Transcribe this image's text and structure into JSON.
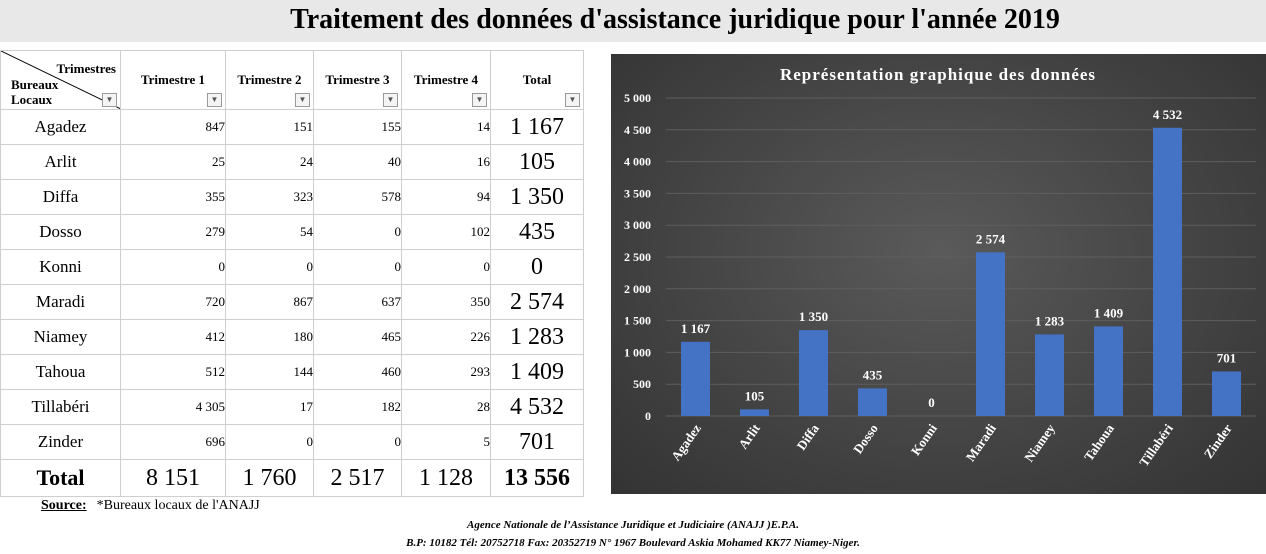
{
  "title": "Traitement des données d'assistance juridique pour l'année 2019",
  "table": {
    "corner_top": "Trimestres",
    "corner_bottom": "Bureaux Locaux",
    "columns": [
      "Trimestre 1",
      "Trimestre 2",
      "Trimestre 3",
      "Trimestre 4",
      "Total"
    ],
    "rows": [
      {
        "label": "Agadez",
        "values": [
          "847",
          "151",
          "155",
          "14"
        ],
        "total": "1 167"
      },
      {
        "label": "Arlit",
        "values": [
          "25",
          "24",
          "40",
          "16"
        ],
        "total": "105"
      },
      {
        "label": "Diffa",
        "values": [
          "355",
          "323",
          "578",
          "94"
        ],
        "total": "1 350"
      },
      {
        "label": "Dosso",
        "values": [
          "279",
          "54",
          "0",
          "102"
        ],
        "total": "435"
      },
      {
        "label": "Konni",
        "values": [
          "0",
          "0",
          "0",
          "0"
        ],
        "total": "0"
      },
      {
        "label": "Maradi",
        "values": [
          "720",
          "867",
          "637",
          "350"
        ],
        "total": "2 574"
      },
      {
        "label": "Niamey",
        "values": [
          "412",
          "180",
          "465",
          "226"
        ],
        "total": "1 283"
      },
      {
        "label": "Tahoua",
        "values": [
          "512",
          "144",
          "460",
          "293"
        ],
        "total": "1 409"
      },
      {
        "label": "Tillabéri",
        "values": [
          "4 305",
          "17",
          "182",
          "28"
        ],
        "total": "4 532"
      },
      {
        "label": "Zinder",
        "values": [
          "696",
          "0",
          "0",
          "5"
        ],
        "total": "701"
      }
    ],
    "total_row": {
      "label": "Total",
      "values": [
        "8 151",
        "1 760",
        "2 517",
        "1 128"
      ],
      "total": "13 556"
    }
  },
  "source": {
    "label": "Source:",
    "text": "*Bureaux locaux de l'ANAJJ"
  },
  "footer": {
    "line1": "Agence Nationale de l’Assistance Juridique et Judiciaire (ANAJJ )E.P.A.",
    "line2": "B.P: 10182 Tél: 20752718 Fax: 20352719 N° 1967 Boulevard Askia Mohamed KK77 Niamey-Niger."
  },
  "chart_data": {
    "type": "bar",
    "title": "Représentation graphique des données",
    "categories": [
      "Agadez",
      "Arlit",
      "Diffa",
      "Dosso",
      "Konni",
      "Maradi",
      "Niamey",
      "Tahoua",
      "Tillabéri",
      "Zinder"
    ],
    "values": [
      1167,
      105,
      1350,
      435,
      0,
      2574,
      1283,
      1409,
      4532,
      701
    ],
    "value_labels": [
      "1 167",
      "105",
      "1 350",
      "435",
      "0",
      "2 574",
      "1 283",
      "1 409",
      "4 532",
      "701"
    ],
    "yticks": [
      0,
      500,
      1000,
      1500,
      2000,
      2500,
      3000,
      3500,
      4000,
      4500,
      5000
    ],
    "ytick_labels": [
      "0",
      "500",
      "1 000",
      "1 500",
      "2 000",
      "2 500",
      "3 000",
      "3 500",
      "4 000",
      "4 500",
      "5 000"
    ],
    "ylim": [
      0,
      5000
    ],
    "xlabel": "",
    "ylabel": "",
    "grid": true,
    "legend": "none",
    "colors": {
      "bar": "#4472c4",
      "background": "#404040",
      "text": "#ffffff",
      "grid": "#5e5e5e"
    }
  }
}
